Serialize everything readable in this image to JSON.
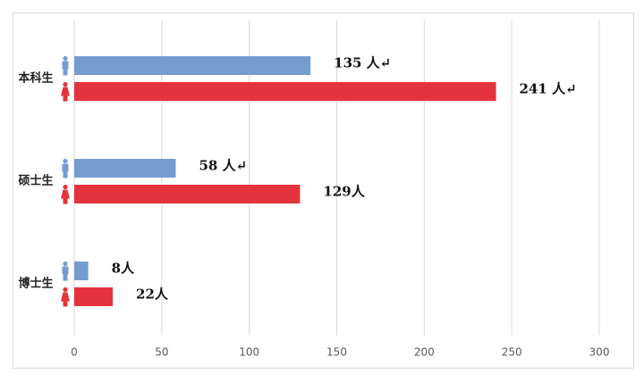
{
  "chart_data": {
    "type": "bar",
    "orientation": "horizontal",
    "categories": [
      "本科生",
      "硕士生",
      "博士生"
    ],
    "series": [
      {
        "color": "#759ccf",
        "values": [
          135,
          58,
          8
        ],
        "value_labels": [
          "135 人↵",
          "58 人↵",
          "8人"
        ]
      },
      {
        "color": "#e5333d",
        "values": [
          241,
          129,
          22
        ],
        "value_labels": [
          "241 人↵",
          "129人",
          "22人"
        ]
      }
    ],
    "xlim": [
      0,
      300
    ],
    "xticks": [
      0,
      50,
      100,
      150,
      200,
      250,
      300
    ],
    "grid": true
  }
}
